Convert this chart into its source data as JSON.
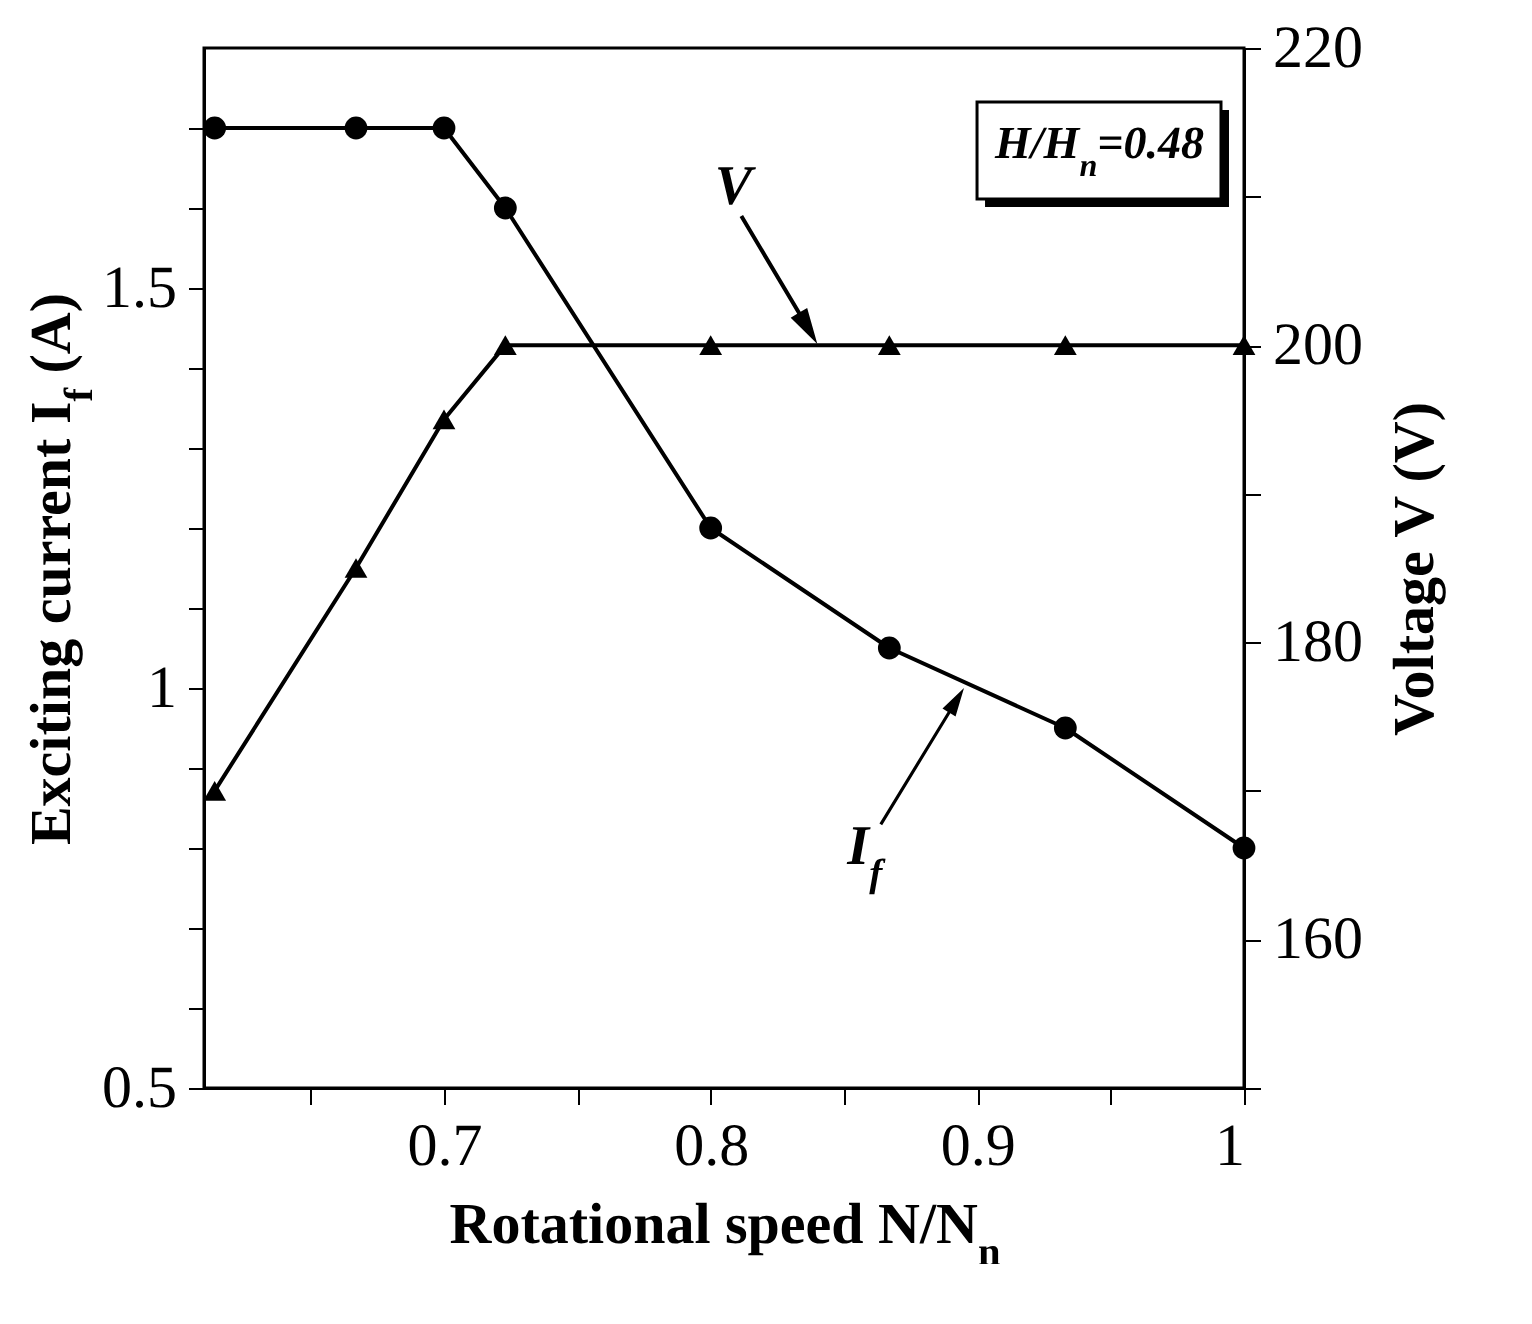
{
  "chart_data": {
    "type": "line",
    "xlabel": "Rotational speed N/N$_{n}$",
    "ylabel": "Exciting current I$_{f}$ (A)",
    "y2label": "Voltage V (V)",
    "xlim": [
      0.61,
      1
    ],
    "xticks": [
      {
        "value": 0.65,
        "label": null
      },
      0.7,
      {
        "value": 0.75,
        "label": null
      },
      0.8,
      {
        "value": 0.85,
        "label": null
      },
      0.9,
      {
        "value": 0.95,
        "label": null
      },
      1
    ],
    "ylim": [
      0.5,
      1.8
    ],
    "yticks": [
      0.5,
      {
        "value": 0.6,
        "label": null
      },
      {
        "value": 0.7,
        "label": null
      },
      {
        "value": 0.8,
        "label": null
      },
      {
        "value": 0.9,
        "label": null
      },
      1,
      {
        "value": 1.1,
        "label": null
      },
      {
        "value": 1.2,
        "label": null
      },
      {
        "value": 1.3,
        "label": null
      },
      {
        "value": 1.4,
        "label": null
      },
      1.5,
      {
        "value": 1.6,
        "label": null
      },
      {
        "value": 1.7,
        "label": null
      }
    ],
    "y2lim": [
      150,
      220
    ],
    "y2ticks": [
      {
        "value": 150,
        "label": null
      },
      160,
      {
        "value": 170,
        "label": null
      },
      180,
      {
        "value": 190,
        "label": null
      },
      200,
      {
        "value": 210,
        "label": null
      },
      220
    ],
    "x": [
      0.614,
      0.667,
      0.7,
      0.723,
      0.8,
      0.867,
      0.933,
      1.0
    ],
    "series": [
      {
        "color": "#000000",
        "marker": "circle",
        "values": [
          1.7,
          1.7,
          1.7,
          1.6,
          1.2,
          1.05,
          0.95,
          0.8
        ]
      },
      {
        "color": "#000000",
        "marker": "triangle",
        "axis": "y2",
        "values": [
          170,
          185,
          195,
          200,
          200,
          200,
          200,
          200
        ]
      }
    ],
    "annotations": [
      {
        "text": "V",
        "x": 0.84,
        "y": 1.43
      },
      {
        "text": "I$_{f}$",
        "x": 0.895,
        "y": 1.0
      },
      "H/H$_{n}$=0.48"
    ],
    "grid": false,
    "line_style": "solid"
  }
}
